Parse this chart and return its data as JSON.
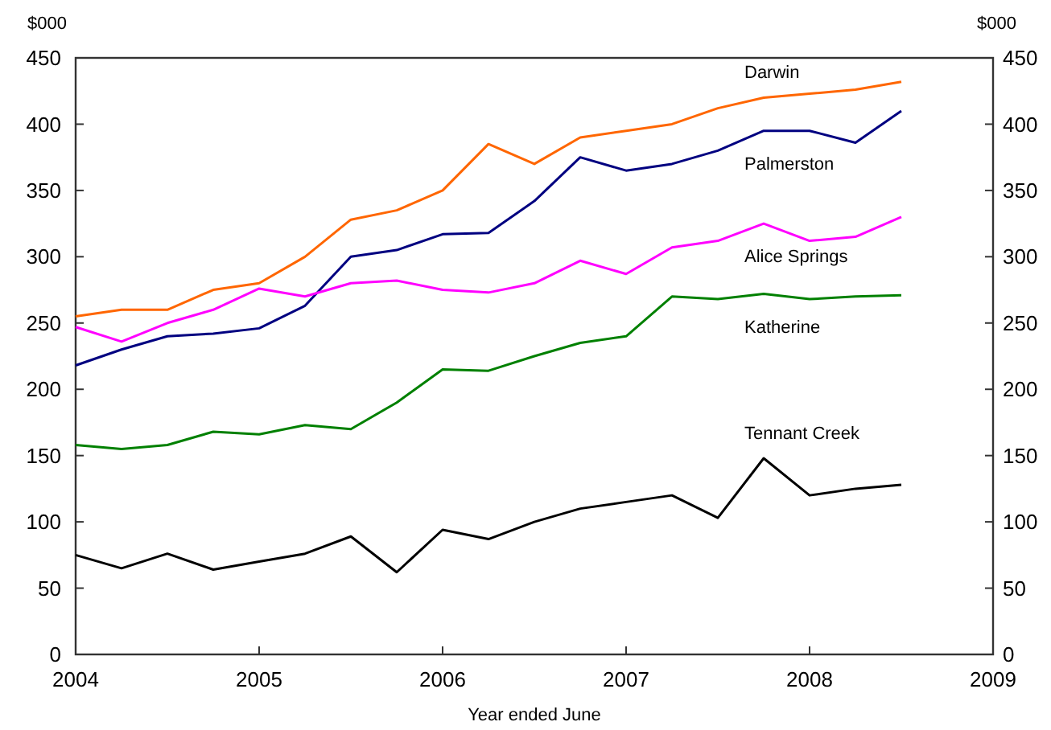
{
  "chart_data": {
    "type": "line",
    "xlabel": "Year ended June",
    "ylabel": "$000",
    "y2label": "$000",
    "x": [
      2004,
      2004.25,
      2004.5,
      2004.75,
      2005,
      2005.25,
      2005.5,
      2005.75,
      2006,
      2006.25,
      2006.5,
      2006.75,
      2007,
      2007.25,
      2007.5,
      2007.75,
      2008,
      2008.25,
      2008.5
    ],
    "xlim": [
      2004,
      2009
    ],
    "xticks": [
      2004,
      2005,
      2006,
      2007,
      2008,
      2009
    ],
    "ylim": [
      0,
      450
    ],
    "yticks": [
      0,
      50,
      100,
      150,
      200,
      250,
      300,
      350,
      400,
      450
    ],
    "y2lim": [
      0,
      450
    ],
    "y2ticks": [
      0,
      50,
      100,
      150,
      200,
      250,
      300,
      350,
      400,
      450
    ],
    "grid": false,
    "series": [
      {
        "name": "Darwin",
        "color": "#ff6600",
        "values": [
          255,
          260,
          260,
          275,
          280,
          300,
          328,
          335,
          350,
          385,
          370,
          390,
          395,
          400,
          412,
          420,
          423,
          426,
          432
        ]
      },
      {
        "name": "Palmerston",
        "color": "#000080",
        "values": [
          218,
          230,
          240,
          242,
          246,
          263,
          300,
          305,
          317,
          318,
          342,
          375,
          365,
          370,
          380,
          395,
          395,
          386,
          410
        ]
      },
      {
        "name": "Alice Springs",
        "color": "#ff00ff",
        "values": [
          247,
          236,
          250,
          260,
          276,
          270,
          280,
          282,
          275,
          273,
          280,
          297,
          287,
          307,
          312,
          325,
          312,
          315,
          330
        ]
      },
      {
        "name": "Katherine",
        "color": "#008000",
        "values": [
          158,
          155,
          158,
          168,
          166,
          173,
          170,
          190,
          215,
          214,
          225,
          235,
          240,
          270,
          268,
          272,
          268,
          270,
          271
        ]
      },
      {
        "name": "Tennant Creek",
        "color": "#000000",
        "values": [
          75,
          65,
          76,
          64,
          70,
          76,
          89,
          62,
          94,
          87,
          100,
          110,
          115,
          120,
          103,
          148,
          120,
          125,
          128
        ]
      }
    ]
  }
}
